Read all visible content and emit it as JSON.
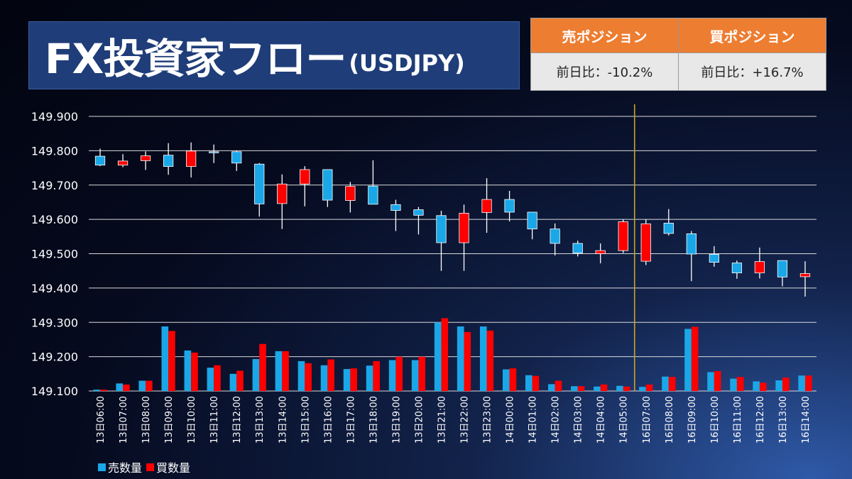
{
  "title": {
    "main": "FX投資家フロー",
    "pair": "(USDJPY)"
  },
  "positions": {
    "sell": {
      "label": "売ポジション",
      "change": "前日比：-10.2%"
    },
    "buy": {
      "label": "買ポジション",
      "change": "前日比：+16.7%"
    }
  },
  "colors": {
    "sell": "#1aa7e8",
    "buy": "#ff0000",
    "grid": "#d9d9d9",
    "marker": "#c9a227",
    "text": "#ffffff"
  },
  "legend": [
    {
      "label": "売数量",
      "color": "#1aa7e8"
    },
    {
      "label": "買数量",
      "color": "#ff0000"
    }
  ],
  "chart_data": {
    "type": "candlestick",
    "y_ticks": [
      "149.900",
      "149.800",
      "149.700",
      "149.600",
      "149.500",
      "149.400",
      "149.300",
      "149.200",
      "149.100"
    ],
    "ylim": [
      149.1,
      149.9
    ],
    "grid": true,
    "legend_position": "bottom-left",
    "marker_between": [
      "14日05:00",
      "16日07:00"
    ],
    "categories": [
      "13日06:00",
      "13日07:00",
      "13日08:00",
      "13日09:00",
      "13日10:00",
      "13日11:00",
      "13日12:00",
      "13日13:00",
      "13日14:00",
      "13日15:00",
      "13日16:00",
      "13日17:00",
      "13日18:00",
      "13日19:00",
      "13日20:00",
      "13日21:00",
      "13日22:00",
      "13日23:00",
      "14日00:00",
      "14日01:00",
      "14日02:00",
      "14日03:00",
      "14日04:00",
      "14日05:00",
      "16日07:00",
      "16日08:00",
      "16日09:00",
      "16日10:00",
      "16日11:00",
      "16日12:00",
      "16日13:00",
      "16日14:00"
    ],
    "candles": [
      {
        "open": 149.758,
        "high": 149.806,
        "low": 149.755,
        "close": 149.784
      },
      {
        "open": 149.77,
        "high": 149.79,
        "low": 149.752,
        "close": 149.758
      },
      {
        "open": 149.785,
        "high": 149.798,
        "low": 149.744,
        "close": 149.771
      },
      {
        "open": 149.754,
        "high": 149.822,
        "low": 149.73,
        "close": 149.787
      },
      {
        "open": 149.799,
        "high": 149.824,
        "low": 149.722,
        "close": 149.754
      },
      {
        "open": 149.794,
        "high": 149.818,
        "low": 149.764,
        "close": 149.797
      },
      {
        "open": 149.764,
        "high": 149.8,
        "low": 149.741,
        "close": 149.797
      },
      {
        "open": 149.645,
        "high": 149.764,
        "low": 149.608,
        "close": 149.761
      },
      {
        "open": 149.703,
        "high": 149.731,
        "low": 149.572,
        "close": 149.646
      },
      {
        "open": 149.745,
        "high": 149.755,
        "low": 149.638,
        "close": 149.703
      },
      {
        "open": 149.656,
        "high": 149.745,
        "low": 149.636,
        "close": 149.745
      },
      {
        "open": 149.696,
        "high": 149.709,
        "low": 149.62,
        "close": 149.655
      },
      {
        "open": 149.644,
        "high": 149.772,
        "low": 149.644,
        "close": 149.697
      },
      {
        "open": 149.626,
        "high": 149.657,
        "low": 149.566,
        "close": 149.643
      },
      {
        "open": 149.612,
        "high": 149.636,
        "low": 149.556,
        "close": 149.628
      },
      {
        "open": 149.532,
        "high": 149.625,
        "low": 149.45,
        "close": 149.611
      },
      {
        "open": 149.618,
        "high": 149.643,
        "low": 149.45,
        "close": 149.532
      },
      {
        "open": 149.658,
        "high": 149.72,
        "low": 149.561,
        "close": 149.62
      },
      {
        "open": 149.621,
        "high": 149.683,
        "low": 149.594,
        "close": 149.658
      },
      {
        "open": 149.572,
        "high": 149.622,
        "low": 149.542,
        "close": 149.621
      },
      {
        "open": 149.53,
        "high": 149.588,
        "low": 149.495,
        "close": 149.572
      },
      {
        "open": 149.502,
        "high": 149.538,
        "low": 149.492,
        "close": 149.53
      },
      {
        "open": 149.509,
        "high": 149.53,
        "low": 149.472,
        "close": 149.5
      },
      {
        "open": 149.593,
        "high": 149.6,
        "low": 149.502,
        "close": 149.509
      },
      {
        "open": 149.587,
        "high": 149.6,
        "low": 149.467,
        "close": 149.478
      },
      {
        "open": 149.559,
        "high": 149.63,
        "low": 149.553,
        "close": 149.589
      },
      {
        "open": 149.499,
        "high": 149.566,
        "low": 149.42,
        "close": 149.558
      },
      {
        "open": 149.475,
        "high": 149.522,
        "low": 149.462,
        "close": 149.498
      },
      {
        "open": 149.444,
        "high": 149.48,
        "low": 149.427,
        "close": 149.473
      },
      {
        "open": 149.477,
        "high": 149.518,
        "low": 149.428,
        "close": 149.444
      },
      {
        "open": 149.432,
        "high": 149.48,
        "low": 149.405,
        "close": 149.48
      },
      {
        "open": 149.442,
        "high": 149.478,
        "low": 149.375,
        "close": 149.433
      }
    ],
    "series": [
      {
        "name": "売数量",
        "values": [
          149.104,
          149.122,
          149.13,
          149.288,
          149.218,
          149.168,
          149.15,
          149.193,
          149.216,
          149.187,
          149.175,
          149.164,
          149.174,
          149.19,
          149.19,
          149.3,
          149.288,
          149.288,
          149.163,
          149.146,
          149.12,
          149.114,
          149.113,
          149.115,
          149.112,
          149.142,
          149.281,
          149.155,
          149.136,
          149.128,
          149.131,
          149.145
        ]
      },
      {
        "name": "買数量",
        "values": [
          149.104,
          149.119,
          149.13,
          149.275,
          149.212,
          149.175,
          149.159,
          149.237,
          149.216,
          149.181,
          149.192,
          149.166,
          149.187,
          149.2,
          149.2,
          149.312,
          149.272,
          149.276,
          149.166,
          149.144,
          149.13,
          149.114,
          149.119,
          149.113,
          149.119,
          149.141,
          149.287,
          149.158,
          149.141,
          149.124,
          149.139,
          149.145
        ]
      }
    ]
  }
}
